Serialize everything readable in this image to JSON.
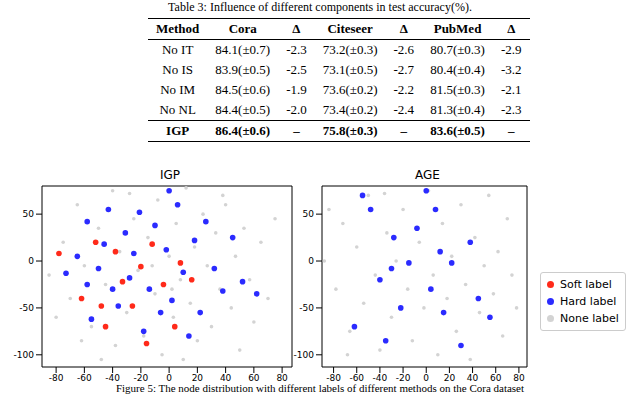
{
  "table": {
    "caption": "Table 3: Influence of different components in test accuracy(%).",
    "header": [
      "Method",
      "Cora",
      "Δ",
      "Citeseer",
      "Δ",
      "PubMed",
      "Δ"
    ],
    "rows": [
      [
        "No IT",
        "84.1(±0.7)",
        "-2.3",
        "73.2(±0.3)",
        "-2.6",
        "80.7(±0.3)",
        "-2.9"
      ],
      [
        "No IS",
        "83.9(±0.5)",
        "-2.5",
        "73.1(±0.5)",
        "-2.7",
        "80.4(±0.4)",
        "-3.2"
      ],
      [
        "No IM",
        "84.5(±0.6)",
        "-1.9",
        "73.6(±0.2)",
        "-2.2",
        "81.5(±0.3)",
        "-2.1"
      ],
      [
        "No NL",
        "84.4(±0.5)",
        "-2.0",
        "73.4(±0.2)",
        "-2.4",
        "81.3(±0.4)",
        "-2.3"
      ]
    ],
    "best_row": [
      "IGP",
      "86.4(±0.6)",
      "–",
      "75.8(±0.3)",
      "–",
      "83.6(±0.5)",
      "–"
    ]
  },
  "chart_data": [
    {
      "type": "scatter",
      "title": "IGP",
      "xlim": [
        -90,
        87
      ],
      "ylim": [
        -113,
        80
      ],
      "xticks": [
        -80,
        -60,
        -40,
        -20,
        0,
        20,
        40,
        60,
        80
      ],
      "yticks": [
        -100,
        -50,
        0,
        50
      ],
      "series": [
        {
          "name": "None label",
          "color": "#d3d3d3",
          "x": [
            -85,
            -75,
            -70,
            -65,
            -60,
            -55,
            -50,
            -45,
            -40,
            -38,
            -35,
            -30,
            -25,
            -22,
            -18,
            -15,
            -10,
            -8,
            -5,
            0,
            3,
            5,
            8,
            12,
            15,
            18,
            20,
            24,
            27,
            30,
            33,
            36,
            40,
            44,
            47,
            50,
            53,
            57,
            60,
            65,
            70,
            75,
            -80,
            -62,
            -48,
            -28,
            -12,
            2,
            10,
            38
          ],
          "values": [
            -15,
            20,
            -40,
            60,
            -5,
            -70,
            35,
            -25,
            75,
            -90,
            10,
            -55,
            45,
            -10,
            -80,
            25,
            -35,
            65,
            -100,
            5,
            -60,
            40,
            -20,
            78,
            -45,
            15,
            -85,
            50,
            -5,
            -70,
            30,
            -30,
            60,
            -50,
            5,
            -95,
            35,
            -20,
            -65,
            20,
            -40,
            45,
            -60,
            -85,
            -105,
            72,
            -5,
            -30,
            -105,
            70
          ]
        },
        {
          "name": "Hard label",
          "color": "#2b2bff",
          "x": [
            -73,
            -65,
            -58,
            -55,
            -50,
            -46,
            -43,
            -40,
            -36,
            -31,
            -28,
            -25,
            -21,
            -18,
            -14,
            -10,
            -6,
            -2,
            2,
            6,
            10,
            14,
            18,
            22,
            26,
            32,
            38,
            45,
            52,
            62,
            0,
            -58
          ],
          "values": [
            -13,
            5,
            42,
            -62,
            -8,
            18,
            55,
            -30,
            -48,
            30,
            -18,
            8,
            52,
            -75,
            -30,
            38,
            -55,
            12,
            -42,
            60,
            -12,
            -80,
            22,
            -55,
            42,
            -8,
            -32,
            25,
            -22,
            -35,
            75,
            -25
          ]
        },
        {
          "name": "Soft label",
          "color": "#ff2a1a",
          "x": [
            -78,
            -62,
            -52,
            -45,
            -38,
            -33,
            -26,
            -20,
            -16,
            -12,
            -4,
            4,
            8,
            16,
            -48
          ],
          "values": [
            8,
            -40,
            20,
            -70,
            10,
            -22,
            -48,
            -6,
            -88,
            18,
            -25,
            -70,
            -2,
            -20,
            -48
          ]
        }
      ]
    },
    {
      "type": "scatter",
      "title": "AGE",
      "xlim": [
        -90,
        87
      ],
      "ylim": [
        -113,
        80
      ],
      "xticks": [
        -80,
        -60,
        -40,
        -20,
        0,
        20,
        40,
        60,
        80
      ],
      "yticks": [
        -100,
        -50,
        0,
        50
      ],
      "series": [
        {
          "name": "None label",
          "color": "#d3d3d3",
          "x": [
            -88,
            -78,
            -72,
            -66,
            -60,
            -54,
            -50,
            -44,
            -40,
            -34,
            -30,
            -26,
            -20,
            -16,
            -12,
            -6,
            -2,
            2,
            6,
            10,
            14,
            18,
            22,
            26,
            30,
            34,
            38,
            42,
            46,
            50,
            54,
            58,
            62,
            66,
            70,
            74,
            78,
            -84,
            -68,
            -36
          ],
          "values": [
            0,
            -30,
            40,
            -75,
            15,
            -45,
            70,
            -15,
            -95,
            30,
            -60,
            0,
            55,
            -30,
            -85,
            20,
            -50,
            75,
            -15,
            -100,
            40,
            -40,
            5,
            -75,
            60,
            -25,
            -105,
            25,
            -55,
            -5,
            70,
            -35,
            10,
            -80,
            45,
            -15,
            -50,
            55,
            -100,
            72
          ]
        },
        {
          "name": "Hard label",
          "color": "#2b2bff",
          "x": [
            -55,
            -48,
            -40,
            -30,
            -28,
            -22,
            -15,
            -8,
            0,
            4,
            8,
            15,
            22,
            30,
            38,
            45,
            -62,
            55,
            -35,
            12
          ],
          "values": [
            70,
            55,
            -20,
            -8,
            25,
            -50,
            -2,
            35,
            75,
            -30,
            55,
            -55,
            -2,
            -90,
            20,
            -40,
            -70,
            -60,
            -85,
            10
          ]
        }
      ]
    }
  ],
  "figure_legend": [
    {
      "name": "Soft label",
      "color": "#ff2a1a"
    },
    {
      "name": "Hard label",
      "color": "#2b2bff"
    },
    {
      "name": "None label",
      "color": "#d3d3d3"
    }
  ],
  "caption": "Figure 5: The node distribution with different labels of different methods on the Cora dataset"
}
